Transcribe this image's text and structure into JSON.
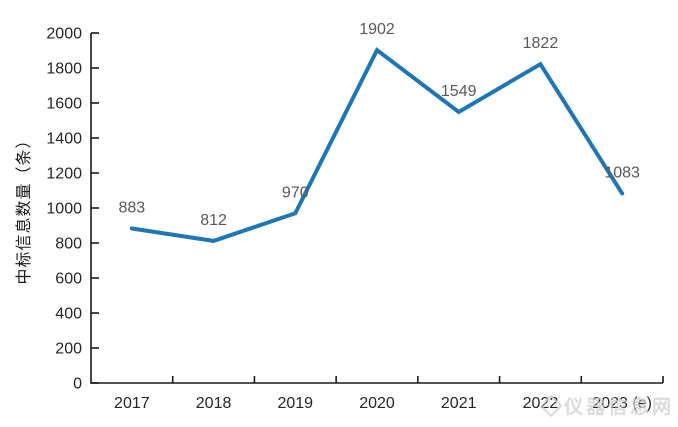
{
  "chart_data": {
    "type": "line",
    "categories": [
      "2017",
      "2018",
      "2019",
      "2020",
      "2021",
      "2022",
      "2023 (e)"
    ],
    "values": [
      883,
      812,
      970,
      1902,
      1549,
      1822,
      1083
    ],
    "title": "",
    "xlabel": "",
    "ylabel": "中标信息数量（条）",
    "ylim": [
      0,
      2000
    ],
    "ytick_step": 200,
    "grid": false,
    "legend_position": "none",
    "line_color": "#1F76B4",
    "data_label_color": "#595959",
    "axis_color": "#1a1a1a",
    "tick_label_color": "#262626"
  },
  "watermark": {
    "text": "仪器信息网"
  }
}
